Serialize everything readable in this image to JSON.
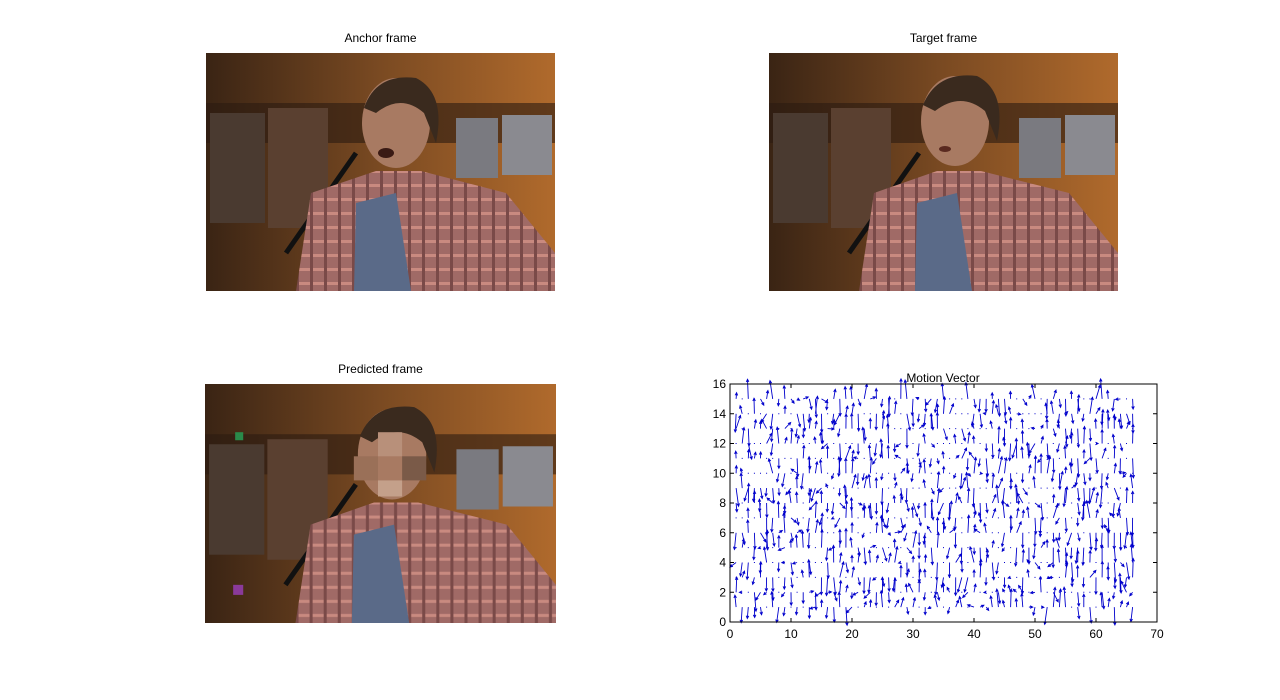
{
  "figure": {
    "anchor_title": "Anchor frame",
    "target_title": "Target frame",
    "predicted_title": "Predicted frame"
  },
  "chart_data": {
    "type": "quiver",
    "title": "Motion Vector",
    "xlabel": "",
    "ylabel": "",
    "xlim": [
      0,
      70
    ],
    "ylim": [
      0,
      16
    ],
    "xticks": [
      0,
      10,
      20,
      30,
      40,
      50,
      60,
      70
    ],
    "yticks": [
      0,
      2,
      4,
      6,
      8,
      10,
      12,
      14,
      16
    ],
    "grid": false,
    "arrow_color": "#0000cc",
    "field": {
      "x_start": 1,
      "x_step": 1,
      "x_count": 66,
      "y_start": 1,
      "y_step": 1,
      "y_count": 15,
      "max_magnitude": 1.5,
      "seed": 17
    }
  },
  "colors": {
    "background": "#ffffff",
    "axes": "#000000",
    "arrows": "#0000cc"
  }
}
